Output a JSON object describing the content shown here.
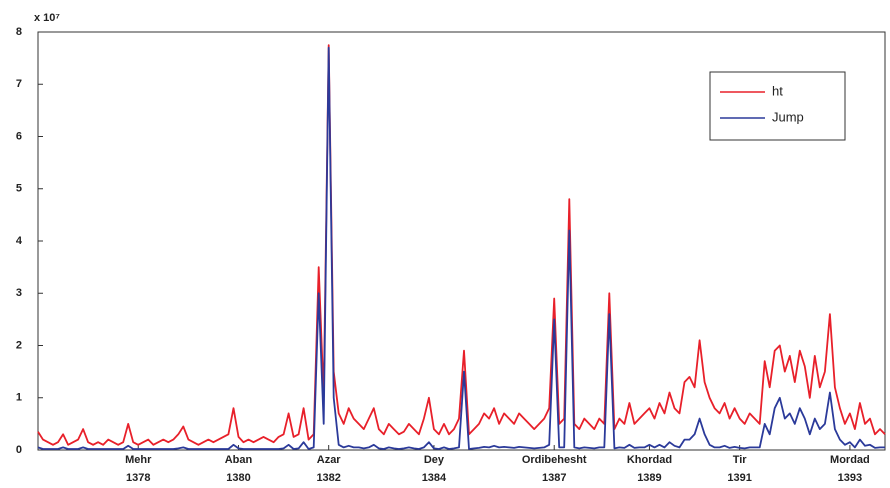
{
  "chart_data": {
    "type": "line",
    "scale_label": "x 10⁷",
    "ylim": [
      0,
      8
    ],
    "yticks": [
      0,
      1,
      2,
      3,
      4,
      5,
      6,
      7,
      8
    ],
    "xlim": [
      0,
      169
    ],
    "xticks": [
      {
        "value": 20,
        "label": "Mehr"
      },
      {
        "value": 40,
        "label": "Aban"
      },
      {
        "value": 58,
        "label": "Azar"
      },
      {
        "value": 79,
        "label": "Dey"
      },
      {
        "value": 103,
        "label": "Ordibehesht"
      },
      {
        "value": 122,
        "label": "Khordad"
      },
      {
        "value": 140,
        "label": "Tir"
      },
      {
        "value": 162,
        "label": "Mordad"
      }
    ],
    "xtick_years": [
      "1378",
      "1380",
      "1382",
      "1384",
      "1387",
      "1389",
      "1391",
      "1393"
    ],
    "legend": "top-right",
    "series": [
      {
        "name": "ht",
        "color": "#e8202a",
        "values": [
          0.35,
          0.2,
          0.15,
          0.1,
          0.15,
          0.3,
          0.1,
          0.15,
          0.2,
          0.4,
          0.15,
          0.1,
          0.15,
          0.1,
          0.2,
          0.15,
          0.1,
          0.15,
          0.5,
          0.15,
          0.1,
          0.15,
          0.2,
          0.1,
          0.15,
          0.2,
          0.15,
          0.2,
          0.3,
          0.45,
          0.2,
          0.15,
          0.1,
          0.15,
          0.2,
          0.15,
          0.2,
          0.25,
          0.3,
          0.8,
          0.25,
          0.15,
          0.2,
          0.15,
          0.2,
          0.25,
          0.2,
          0.15,
          0.25,
          0.3,
          0.7,
          0.25,
          0.3,
          0.8,
          0.2,
          0.3,
          3.5,
          1.0,
          7.75,
          1.5,
          0.7,
          0.5,
          0.8,
          0.6,
          0.5,
          0.4,
          0.6,
          0.8,
          0.4,
          0.3,
          0.5,
          0.4,
          0.3,
          0.35,
          0.5,
          0.4,
          0.3,
          0.6,
          1.0,
          0.4,
          0.3,
          0.5,
          0.3,
          0.4,
          0.6,
          1.9,
          0.3,
          0.4,
          0.5,
          0.7,
          0.6,
          0.8,
          0.5,
          0.7,
          0.6,
          0.5,
          0.7,
          0.6,
          0.5,
          0.4,
          0.5,
          0.6,
          0.8,
          2.9,
          0.5,
          0.6,
          4.8,
          0.5,
          0.4,
          0.6,
          0.5,
          0.4,
          0.6,
          0.5,
          3.0,
          0.4,
          0.6,
          0.5,
          0.9,
          0.5,
          0.6,
          0.7,
          0.8,
          0.6,
          0.9,
          0.7,
          1.1,
          0.8,
          0.7,
          1.3,
          1.4,
          1.2,
          2.1,
          1.3,
          1.0,
          0.8,
          0.7,
          0.9,
          0.6,
          0.8,
          0.6,
          0.5,
          0.7,
          0.6,
          0.5,
          1.7,
          1.2,
          1.9,
          2.0,
          1.5,
          1.8,
          1.3,
          1.9,
          1.6,
          1.0,
          1.8,
          1.2,
          1.5,
          2.6,
          1.2,
          0.8,
          0.5,
          0.7,
          0.4,
          0.9,
          0.5,
          0.6,
          0.3,
          0.4,
          0.3
        ]
      },
      {
        "name": "Jump",
        "color": "#2b3a9a",
        "values": [
          0.05,
          0.02,
          0.02,
          0.02,
          0.02,
          0.05,
          0.02,
          0.02,
          0.02,
          0.05,
          0.02,
          0.02,
          0.02,
          0.02,
          0.02,
          0.02,
          0.02,
          0.02,
          0.08,
          0.02,
          0.02,
          0.02,
          0.02,
          0.02,
          0.02,
          0.02,
          0.02,
          0.02,
          0.03,
          0.05,
          0.02,
          0.02,
          0.02,
          0.02,
          0.02,
          0.02,
          0.02,
          0.02,
          0.02,
          0.1,
          0.03,
          0.02,
          0.02,
          0.02,
          0.02,
          0.02,
          0.02,
          0.02,
          0.02,
          0.03,
          0.1,
          0.02,
          0.03,
          0.15,
          0.02,
          0.05,
          3.0,
          0.5,
          7.7,
          1.0,
          0.1,
          0.05,
          0.08,
          0.05,
          0.05,
          0.03,
          0.05,
          0.1,
          0.03,
          0.02,
          0.05,
          0.03,
          0.02,
          0.03,
          0.05,
          0.03,
          0.02,
          0.05,
          0.15,
          0.03,
          0.02,
          0.05,
          0.02,
          0.03,
          0.05,
          1.5,
          0.02,
          0.03,
          0.04,
          0.06,
          0.05,
          0.08,
          0.05,
          0.06,
          0.05,
          0.04,
          0.06,
          0.05,
          0.04,
          0.03,
          0.04,
          0.05,
          0.1,
          2.5,
          0.05,
          0.05,
          4.2,
          0.05,
          0.03,
          0.05,
          0.04,
          0.03,
          0.05,
          0.05,
          2.6,
          0.03,
          0.05,
          0.04,
          0.1,
          0.04,
          0.05,
          0.05,
          0.1,
          0.05,
          0.1,
          0.05,
          0.15,
          0.08,
          0.05,
          0.2,
          0.2,
          0.3,
          0.6,
          0.3,
          0.1,
          0.05,
          0.05,
          0.08,
          0.04,
          0.06,
          0.04,
          0.03,
          0.05,
          0.05,
          0.05,
          0.5,
          0.3,
          0.8,
          1.0,
          0.6,
          0.7,
          0.5,
          0.8,
          0.6,
          0.3,
          0.6,
          0.4,
          0.5,
          1.1,
          0.4,
          0.2,
          0.1,
          0.15,
          0.05,
          0.2,
          0.08,
          0.1,
          0.04,
          0.05,
          0.05
        ]
      }
    ]
  }
}
